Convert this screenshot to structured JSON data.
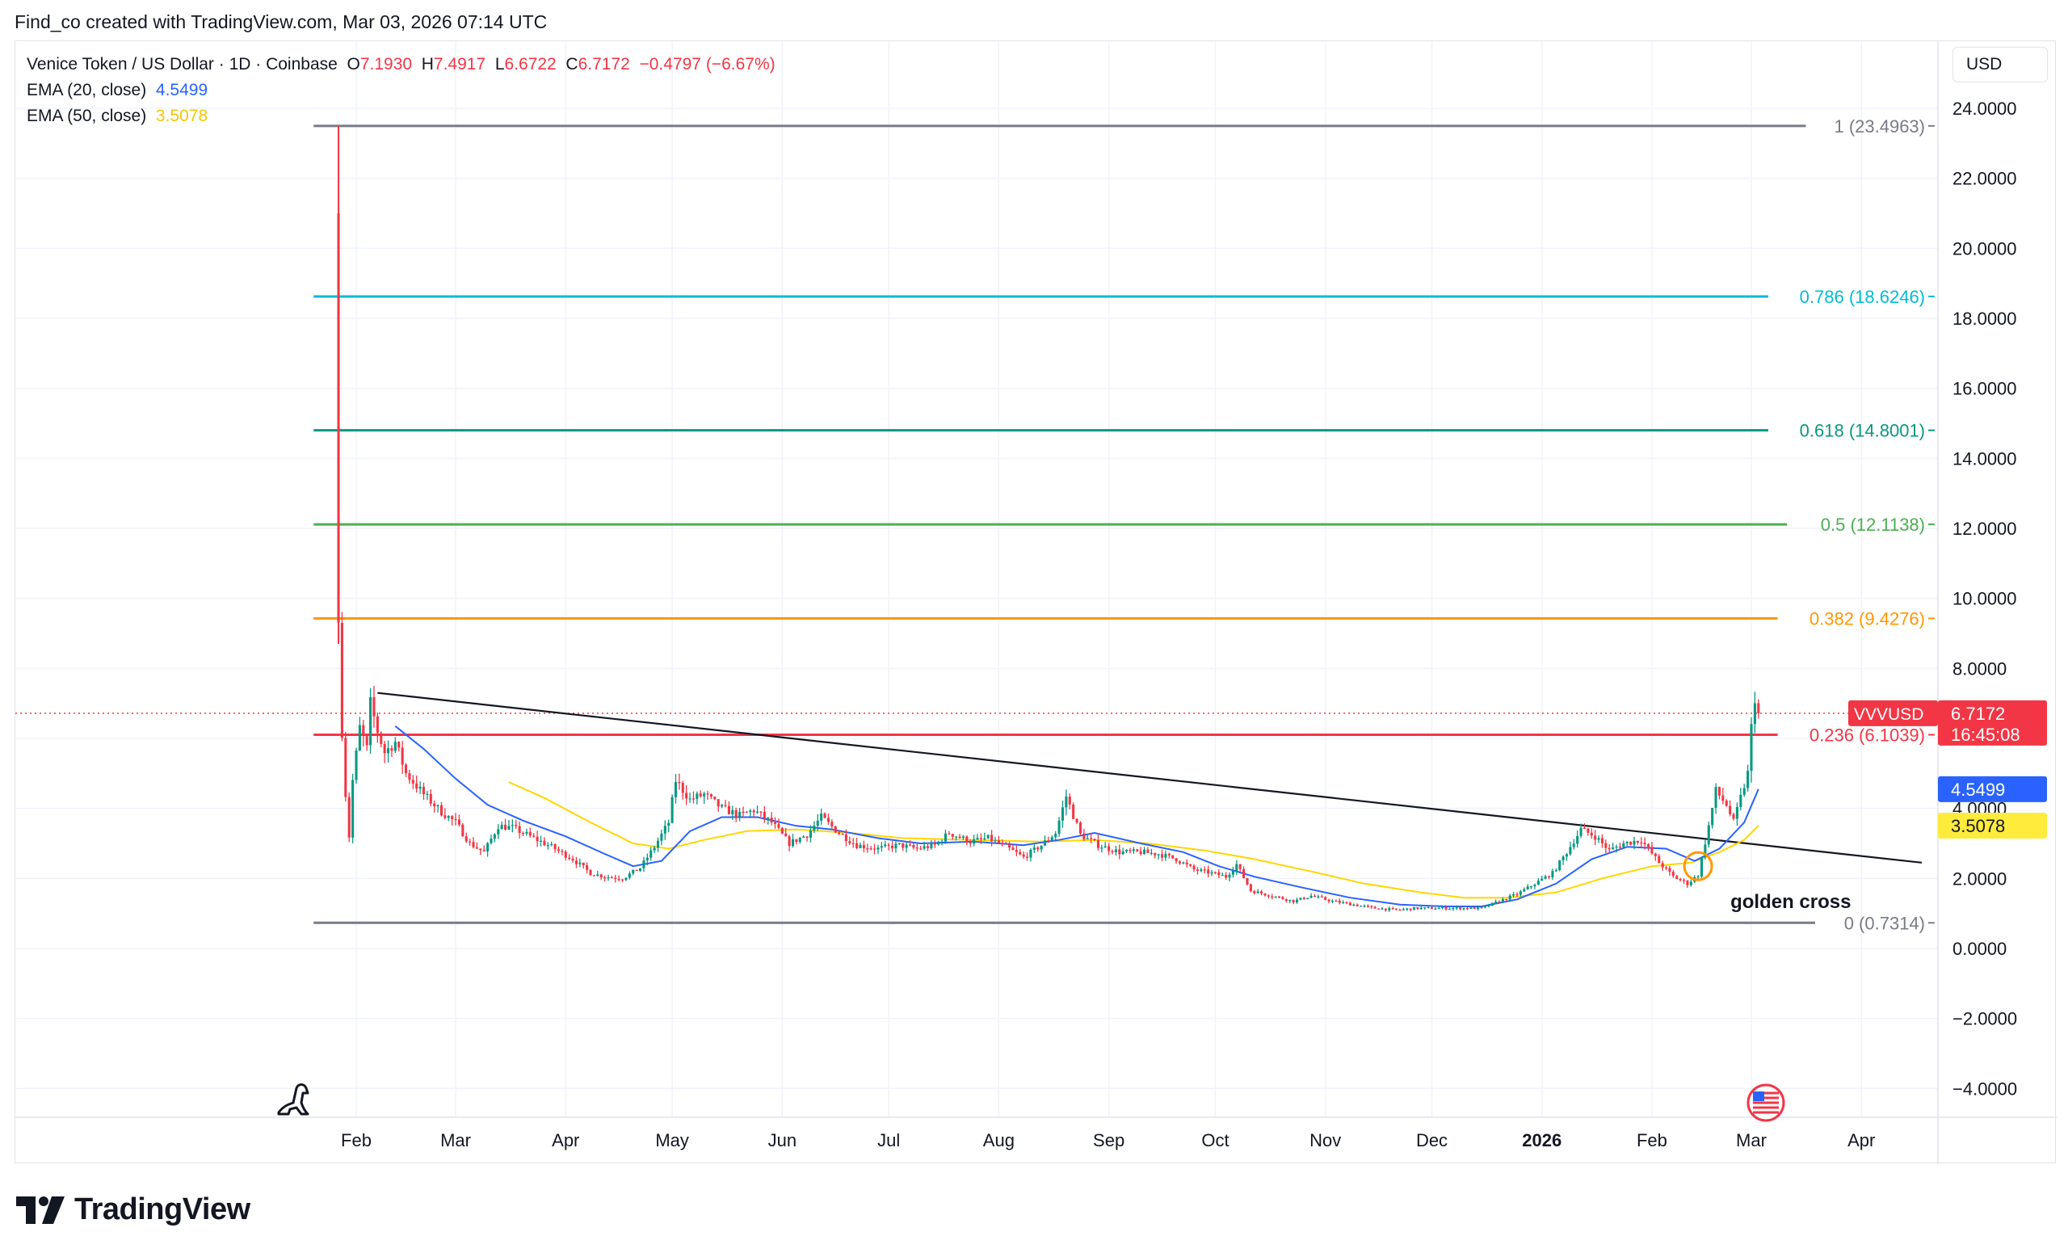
{
  "header": {
    "caption": "Find_co created with TradingView.com, Mar 03, 2026 07:14 UTC"
  },
  "legend": {
    "symbol": "Venice Token / US Dollar · 1D · Coinbase",
    "open_label": "O",
    "open": "7.1930",
    "high_label": "H",
    "high": "7.4917",
    "low_label": "L",
    "low": "6.6722",
    "close_label": "C",
    "close": "6.7172",
    "change": "−0.4797 (−6.67%)",
    "ema20_label": "EMA (20, close)",
    "ema20_value": "4.5499",
    "ema50_label": "EMA (50, close)",
    "ema50_value": "3.5078"
  },
  "currency": "USD",
  "branding": {
    "logo_text": "TradingView",
    "logo_icon": "tradingview-logo-icon"
  },
  "colors": {
    "up": "#089981",
    "down": "#f23645",
    "ema20": "#2962ff",
    "ema50": "#ffd600",
    "trendline": "#131722"
  },
  "chart_data": {
    "type": "candlestick",
    "y_range": [
      -4.6,
      24.6
    ],
    "y_ticks": [
      "24.0000",
      "22.0000",
      "20.0000",
      "18.0000",
      "16.0000",
      "14.0000",
      "12.0000",
      "10.0000",
      "8.0000",
      "6.0000",
      "4.0000",
      "2.0000",
      "0.0000",
      "−2.0000",
      "−4.0000"
    ],
    "y_tick_values": [
      24,
      22,
      20,
      18,
      16,
      14,
      12,
      10,
      8,
      6,
      4,
      2,
      0,
      -2,
      -4
    ],
    "x_labels": [
      {
        "label": "Feb",
        "date": "2025-02-01"
      },
      {
        "label": "Mar",
        "date": "2025-03-01"
      },
      {
        "label": "Apr",
        "date": "2025-04-01"
      },
      {
        "label": "May",
        "date": "2025-05-01"
      },
      {
        "label": "Jun",
        "date": "2025-06-01"
      },
      {
        "label": "Jul",
        "date": "2025-07-01"
      },
      {
        "label": "Aug",
        "date": "2025-08-01"
      },
      {
        "label": "Sep",
        "date": "2025-09-01"
      },
      {
        "label": "Oct",
        "date": "2025-10-01"
      },
      {
        "label": "Nov",
        "date": "2025-11-01"
      },
      {
        "label": "Dec",
        "date": "2025-12-01"
      },
      {
        "label": "2026",
        "date": "2026-01-01",
        "bold": true
      },
      {
        "label": "Feb",
        "date": "2026-02-01"
      },
      {
        "label": "Mar",
        "date": "2026-03-01"
      },
      {
        "label": "Apr",
        "date": "2026-04-01"
      }
    ],
    "fib_levels": [
      {
        "ratio": "1",
        "value": 23.4963,
        "label": "1 (23.4963)",
        "color": "#787b86"
      },
      {
        "ratio": "0.786",
        "value": 18.6246,
        "label": "0.786 (18.6246)",
        "color": "#00bcd4"
      },
      {
        "ratio": "0.618",
        "value": 14.8001,
        "label": "0.618 (14.8001)",
        "color": "#089981"
      },
      {
        "ratio": "0.5",
        "value": 12.1138,
        "label": "0.5 (12.1138)",
        "color": "#4caf50"
      },
      {
        "ratio": "0.382",
        "value": 9.4276,
        "label": "0.382 (9.4276)",
        "color": "#ff9800"
      },
      {
        "ratio": "0.236",
        "value": 6.1039,
        "label": "0.236 (6.1039)",
        "color": "#f23645"
      },
      {
        "ratio": "0",
        "value": 0.7314,
        "label": "0 (0.7314)",
        "color": "#787b86"
      }
    ],
    "fib_start_date": "2025-01-20",
    "trendline": [
      {
        "date": "2025-02-07",
        "value": 7.3
      },
      {
        "date": "2026-04-18",
        "value": 2.45
      }
    ],
    "current_price": {
      "symbol": "VVVUSD",
      "value": 6.7172,
      "label": "6.7172",
      "countdown": "16:45:08"
    },
    "ema20_current": {
      "value": 4.5499,
      "label": "4.5499"
    },
    "ema50_current": {
      "value": 3.5078,
      "label": "3.5078"
    },
    "annotation": {
      "text": "golden cross",
      "date": "2026-02-14",
      "value": 2.35
    },
    "price_path": [
      [
        "2025-01-27",
        20.0
      ],
      [
        "2025-01-27",
        9.0
      ],
      [
        "2025-01-28",
        6.2
      ],
      [
        "2025-01-29",
        4.4
      ],
      [
        "2025-01-30",
        3.2
      ],
      [
        "2025-01-31",
        4.8
      ],
      [
        "2025-02-02",
        6.3
      ],
      [
        "2025-02-04",
        5.7
      ],
      [
        "2025-02-05",
        7.0
      ],
      [
        "2025-02-07",
        6.2
      ],
      [
        "2025-02-09",
        5.6
      ],
      [
        "2025-02-12",
        5.9
      ],
      [
        "2025-02-15",
        5.0
      ],
      [
        "2025-02-20",
        4.4
      ],
      [
        "2025-02-25",
        3.9
      ],
      [
        "2025-03-01",
        3.6
      ],
      [
        "2025-03-05",
        3.0
      ],
      [
        "2025-03-09",
        2.75
      ],
      [
        "2025-03-13",
        3.5
      ],
      [
        "2025-03-17",
        3.45
      ],
      [
        "2025-03-22",
        3.2
      ],
      [
        "2025-03-28",
        2.9
      ],
      [
        "2025-04-03",
        2.55
      ],
      [
        "2025-04-08",
        2.15
      ],
      [
        "2025-04-12",
        2.05
      ],
      [
        "2025-04-17",
        2.0
      ],
      [
        "2025-04-22",
        2.3
      ],
      [
        "2025-04-26",
        2.9
      ],
      [
        "2025-04-30",
        3.6
      ],
      [
        "2025-05-02",
        4.8
      ],
      [
        "2025-05-06",
        4.25
      ],
      [
        "2025-05-10",
        4.4
      ],
      [
        "2025-05-15",
        4.0
      ],
      [
        "2025-05-20",
        3.8
      ],
      [
        "2025-05-24",
        3.95
      ],
      [
        "2025-05-29",
        3.6
      ],
      [
        "2025-06-03",
        3.0
      ],
      [
        "2025-06-08",
        3.25
      ],
      [
        "2025-06-12",
        3.75
      ],
      [
        "2025-06-17",
        3.3
      ],
      [
        "2025-06-22",
        2.95
      ],
      [
        "2025-06-28",
        2.85
      ],
      [
        "2025-07-04",
        2.95
      ],
      [
        "2025-07-09",
        2.85
      ],
      [
        "2025-07-14",
        2.95
      ],
      [
        "2025-07-18",
        3.3
      ],
      [
        "2025-07-24",
        3.05
      ],
      [
        "2025-07-29",
        3.15
      ],
      [
        "2025-08-03",
        2.9
      ],
      [
        "2025-08-08",
        2.6
      ],
      [
        "2025-08-13",
        2.95
      ],
      [
        "2025-08-17",
        3.3
      ],
      [
        "2025-08-20",
        4.35
      ],
      [
        "2025-08-24",
        3.25
      ],
      [
        "2025-08-29",
        2.95
      ],
      [
        "2025-09-04",
        2.75
      ],
      [
        "2025-09-10",
        2.75
      ],
      [
        "2025-09-15",
        2.7
      ],
      [
        "2025-09-20",
        2.55
      ],
      [
        "2025-09-25",
        2.25
      ],
      [
        "2025-09-30",
        2.15
      ],
      [
        "2025-10-04",
        2.05
      ],
      [
        "2025-10-07",
        2.4
      ],
      [
        "2025-10-11",
        1.65
      ],
      [
        "2025-10-17",
        1.5
      ],
      [
        "2025-10-23",
        1.35
      ],
      [
        "2025-10-28",
        1.5
      ],
      [
        "2025-11-03",
        1.35
      ],
      [
        "2025-11-09",
        1.25
      ],
      [
        "2025-11-15",
        1.15
      ],
      [
        "2025-11-21",
        1.1
      ],
      [
        "2025-11-27",
        1.15
      ],
      [
        "2025-12-03",
        1.15
      ],
      [
        "2025-12-09",
        1.15
      ],
      [
        "2025-12-15",
        1.15
      ],
      [
        "2025-12-20",
        1.35
      ],
      [
        "2025-12-25",
        1.55
      ],
      [
        "2025-12-30",
        1.85
      ],
      [
        "2026-01-04",
        2.15
      ],
      [
        "2026-01-08",
        2.75
      ],
      [
        "2026-01-12",
        3.4
      ],
      [
        "2026-01-16",
        3.2
      ],
      [
        "2026-01-20",
        2.8
      ],
      [
        "2026-01-24",
        3.0
      ],
      [
        "2026-01-29",
        3.1
      ],
      [
        "2026-02-03",
        2.45
      ],
      [
        "2026-02-07",
        2.05
      ],
      [
        "2026-02-11",
        1.85
      ],
      [
        "2026-02-14",
        2.1
      ],
      [
        "2026-02-17",
        3.5
      ],
      [
        "2026-02-19",
        4.5
      ],
      [
        "2026-02-22",
        4.1
      ],
      [
        "2026-02-24",
        3.6
      ],
      [
        "2026-02-26",
        4.3
      ],
      [
        "2026-02-28",
        5.0
      ],
      [
        "2026-03-01",
        6.3
      ],
      [
        "2026-03-02",
        7.19
      ],
      [
        "2026-03-03",
        6.72
      ]
    ],
    "ema20": [
      [
        "2025-02-12",
        6.35
      ],
      [
        "2025-02-20",
        5.7
      ],
      [
        "2025-03-01",
        4.85
      ],
      [
        "2025-03-10",
        4.1
      ],
      [
        "2025-03-20",
        3.65
      ],
      [
        "2025-04-01",
        3.2
      ],
      [
        "2025-04-12",
        2.7
      ],
      [
        "2025-04-20",
        2.35
      ],
      [
        "2025-04-28",
        2.5
      ],
      [
        "2025-05-06",
        3.35
      ],
      [
        "2025-05-15",
        3.75
      ],
      [
        "2025-05-25",
        3.75
      ],
      [
        "2025-06-05",
        3.5
      ],
      [
        "2025-06-15",
        3.4
      ],
      [
        "2025-06-28",
        3.15
      ],
      [
        "2025-07-10",
        3.0
      ],
      [
        "2025-07-25",
        3.05
      ],
      [
        "2025-08-08",
        2.95
      ],
      [
        "2025-08-18",
        3.1
      ],
      [
        "2025-08-28",
        3.3
      ],
      [
        "2025-09-10",
        3.0
      ],
      [
        "2025-09-22",
        2.75
      ],
      [
        "2025-10-02",
        2.35
      ],
      [
        "2025-10-12",
        2.05
      ],
      [
        "2025-10-25",
        1.75
      ],
      [
        "2025-11-08",
        1.45
      ],
      [
        "2025-11-22",
        1.25
      ],
      [
        "2025-12-05",
        1.2
      ],
      [
        "2025-12-15",
        1.2
      ],
      [
        "2025-12-25",
        1.4
      ],
      [
        "2026-01-05",
        1.85
      ],
      [
        "2026-01-15",
        2.55
      ],
      [
        "2026-01-25",
        2.9
      ],
      [
        "2026-02-05",
        2.85
      ],
      [
        "2026-02-13",
        2.5
      ],
      [
        "2026-02-20",
        2.85
      ],
      [
        "2026-02-27",
        3.6
      ],
      [
        "2026-03-03",
        4.55
      ]
    ],
    "ema50": [
      [
        "2025-03-16",
        4.75
      ],
      [
        "2025-03-26",
        4.3
      ],
      [
        "2025-04-08",
        3.6
      ],
      [
        "2025-04-20",
        3.0
      ],
      [
        "2025-04-30",
        2.85
      ],
      [
        "2025-05-10",
        3.1
      ],
      [
        "2025-05-22",
        3.35
      ],
      [
        "2025-06-05",
        3.4
      ],
      [
        "2025-06-20",
        3.3
      ],
      [
        "2025-07-05",
        3.15
      ],
      [
        "2025-07-25",
        3.1
      ],
      [
        "2025-08-12",
        3.05
      ],
      [
        "2025-08-28",
        3.1
      ],
      [
        "2025-09-12",
        3.0
      ],
      [
        "2025-09-28",
        2.8
      ],
      [
        "2025-10-12",
        2.55
      ],
      [
        "2025-10-28",
        2.2
      ],
      [
        "2025-11-12",
        1.85
      ],
      [
        "2025-11-28",
        1.6
      ],
      [
        "2025-12-10",
        1.45
      ],
      [
        "2025-12-22",
        1.45
      ],
      [
        "2026-01-05",
        1.6
      ],
      [
        "2026-01-18",
        2.0
      ],
      [
        "2026-02-01",
        2.35
      ],
      [
        "2026-02-12",
        2.45
      ],
      [
        "2026-02-20",
        2.75
      ],
      [
        "2026-02-27",
        3.1
      ],
      [
        "2026-03-03",
        3.51
      ]
    ]
  }
}
